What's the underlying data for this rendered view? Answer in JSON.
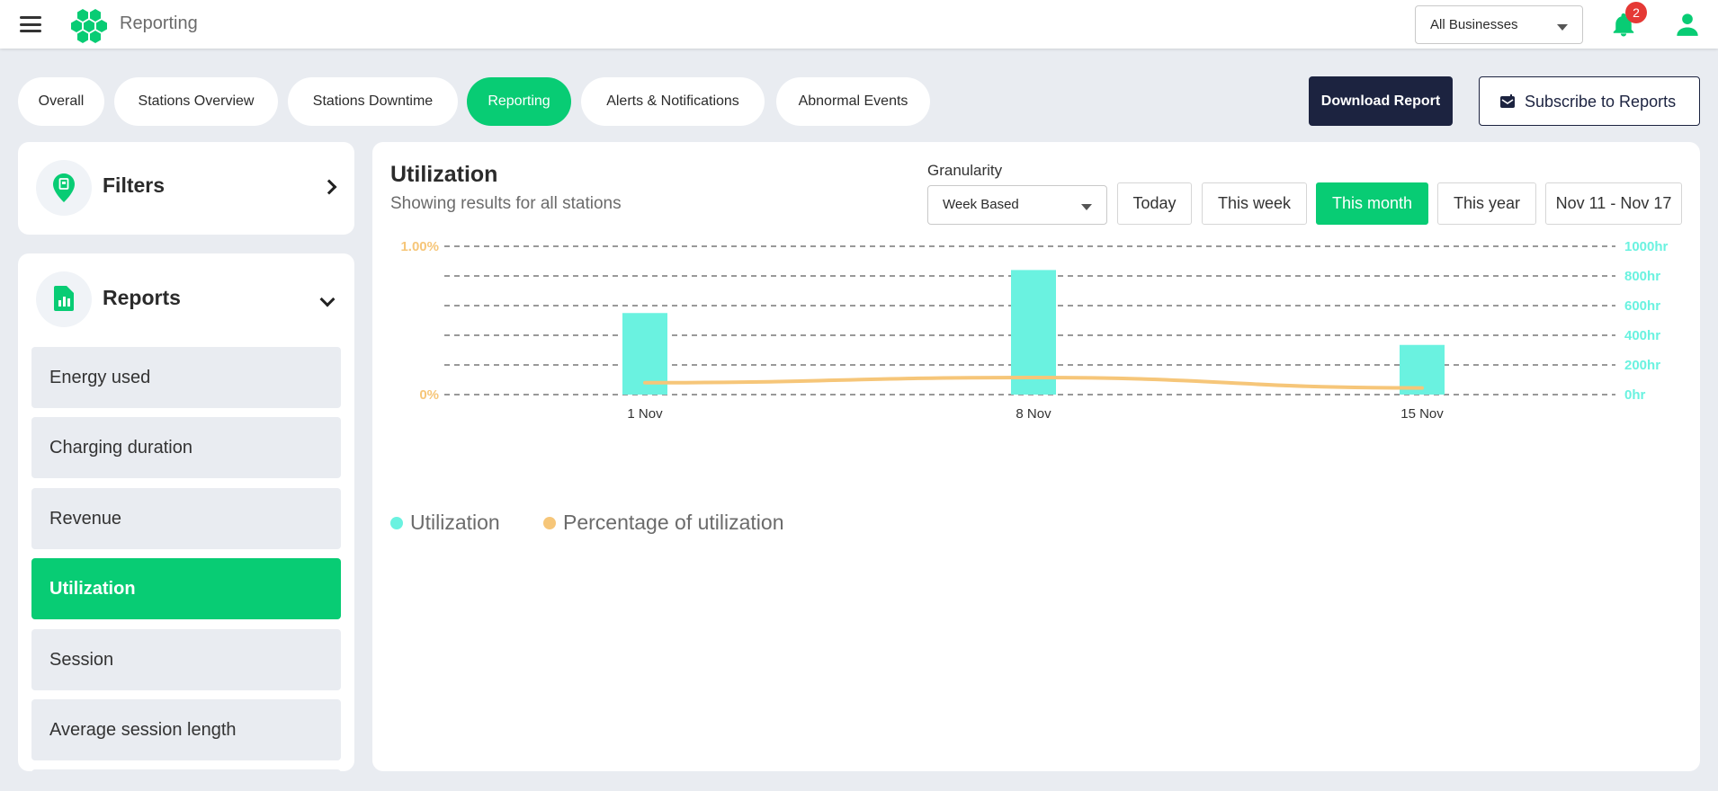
{
  "header": {
    "app_title": "Reporting",
    "business_select": "All Businesses",
    "notification_count": "2",
    "menu_icon": "hamburger-icon",
    "logo_icon": "hexagon-cluster-logo",
    "bell_icon": "bell-icon",
    "user_icon": "user-icon"
  },
  "tabs": [
    {
      "label": "Overall",
      "active": false
    },
    {
      "label": "Stations Overview",
      "active": false
    },
    {
      "label": "Stations Downtime",
      "active": false
    },
    {
      "label": "Reporting",
      "active": true
    },
    {
      "label": "Alerts & Notifications",
      "active": false
    },
    {
      "label": "Abnormal Events",
      "active": false
    }
  ],
  "actions": {
    "download_label": "Download Report",
    "subscribe_label": "Subscribe to Reports",
    "subscribe_icon": "mail-calendar-icon"
  },
  "sidebar": {
    "filters_title": "Filters",
    "filters_icon": "location-pin-icon",
    "reports_title": "Reports",
    "reports_icon": "report-chart-icon",
    "report_items": [
      {
        "label": "Energy used",
        "active": false
      },
      {
        "label": "Charging duration",
        "active": false
      },
      {
        "label": "Revenue",
        "active": false
      },
      {
        "label": "Utilization",
        "active": true
      },
      {
        "label": "Session",
        "active": false
      },
      {
        "label": "Average session length",
        "active": false
      }
    ]
  },
  "main": {
    "title": "Utilization",
    "subtitle": "Showing results for all stations",
    "granularity_label": "Granularity",
    "granularity_value": "Week Based",
    "ranges": [
      {
        "label": "Today",
        "active": false
      },
      {
        "label": "This week",
        "active": false
      },
      {
        "label": "This month",
        "active": true
      },
      {
        "label": "This year",
        "active": false
      }
    ],
    "date_range": "Nov 11 - Nov 17"
  },
  "colors": {
    "accent": "#08cc74",
    "dark": "#1c2340",
    "bar": "#6af2e0",
    "line": "#f6c679",
    "left_axis": "#f6c679",
    "right_axis": "#6af2e0"
  },
  "chart_data": {
    "type": "bar",
    "categories": [
      "1 Nov",
      "8 Nov",
      "15 Nov"
    ],
    "series": [
      {
        "name": "Utilization",
        "type": "bar",
        "axis": "right",
        "values": [
          550,
          840,
          335
        ]
      },
      {
        "name": "Percentage of utilization",
        "type": "line",
        "axis": "left",
        "values": [
          0.08,
          0.115,
          0.045
        ]
      }
    ],
    "left_axis": {
      "ticks": [
        "0%",
        "1.00%"
      ],
      "range": [
        0,
        1
      ]
    },
    "right_axis": {
      "ticks": [
        "0hr",
        "200hr",
        "400hr",
        "600hr",
        "800hr",
        "1000hr"
      ],
      "range": [
        0,
        1000
      ]
    },
    "grid": true,
    "legend_position": "bottom-left"
  }
}
